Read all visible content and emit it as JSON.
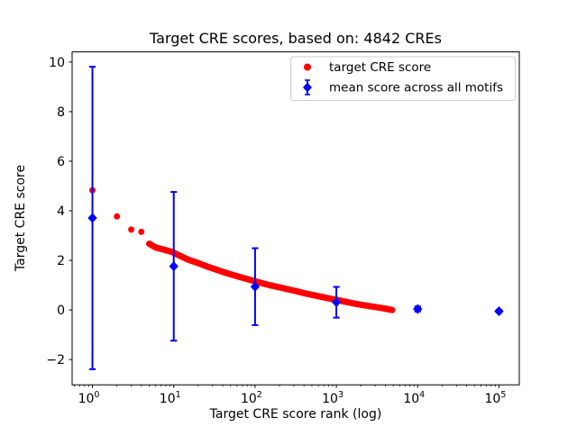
{
  "chart_data": {
    "type": "scatter",
    "title": "Target CRE scores, based on: 4842 CREs",
    "xlabel": "Target CRE score rank (log)",
    "ylabel": "Target CRE score",
    "xscale": "log",
    "xlim_log": [
      -0.25,
      5.25
    ],
    "ylim": [
      -3.02,
      10.41
    ],
    "x_tick_exponents": [
      0,
      1,
      2,
      3,
      4,
      5
    ],
    "x_tick_base": "10",
    "y_ticks": [
      -2,
      0,
      2,
      4,
      6,
      8,
      10
    ],
    "grid": false,
    "legend": {
      "position": "upper right",
      "entries": [
        {
          "label": "target CRE score",
          "marker": "circle",
          "color": "#ff0000"
        },
        {
          "label": "mean score across all motifs",
          "marker": "diamond-errorbar",
          "color": "#0000ff"
        }
      ]
    },
    "series": [
      {
        "name": "target CRE score",
        "marker": "circle",
        "color": "#ff0000",
        "note": "4842 ranked points rendered as overlapping dots; sampled anchors [rank, score], continuous band from rank 5 onward",
        "connect_from_rank": 5,
        "points": [
          [
            1,
            4.83
          ],
          [
            2,
            3.77
          ],
          [
            3,
            3.24
          ],
          [
            4,
            3.15
          ],
          [
            5,
            2.67
          ],
          [
            6,
            2.52
          ],
          [
            7,
            2.46
          ],
          [
            8,
            2.41
          ],
          [
            9,
            2.36
          ],
          [
            10,
            2.31
          ],
          [
            12,
            2.18
          ],
          [
            15,
            2.03
          ],
          [
            20,
            1.89
          ],
          [
            25,
            1.77
          ],
          [
            30,
            1.68
          ],
          [
            40,
            1.54
          ],
          [
            50,
            1.44
          ],
          [
            65,
            1.33
          ],
          [
            80,
            1.25
          ],
          [
            100,
            1.16
          ],
          [
            125,
            1.07
          ],
          [
            160,
            0.98
          ],
          [
            200,
            0.91
          ],
          [
            250,
            0.84
          ],
          [
            320,
            0.76
          ],
          [
            400,
            0.68
          ],
          [
            500,
            0.61
          ],
          [
            630,
            0.54
          ],
          [
            800,
            0.47
          ],
          [
            1000,
            0.41
          ],
          [
            1250,
            0.34
          ],
          [
            1600,
            0.27
          ],
          [
            2000,
            0.21
          ],
          [
            2500,
            0.16
          ],
          [
            3000,
            0.12
          ],
          [
            3600,
            0.08
          ],
          [
            4200,
            0.04
          ],
          [
            4842,
            0.0
          ]
        ]
      },
      {
        "name": "mean score across all motifs",
        "marker": "diamond",
        "color": "#0000ff",
        "points": [
          {
            "x": 1,
            "mean": 3.71,
            "err": 6.1
          },
          {
            "x": 10,
            "mean": 1.76,
            "err": 3.0
          },
          {
            "x": 100,
            "mean": 0.94,
            "err": 1.55
          },
          {
            "x": 1000,
            "mean": 0.31,
            "err": 0.62
          },
          {
            "x": 10000,
            "mean": 0.04,
            "err": 0.1
          },
          {
            "x": 100000,
            "mean": -0.05,
            "err": 0.05
          }
        ]
      }
    ]
  },
  "colors": {
    "background": "#ffffff",
    "red_series": "#ff0000",
    "blue_series": "#0000ff",
    "axis": "#000000",
    "legend_border": "#cccccc"
  }
}
